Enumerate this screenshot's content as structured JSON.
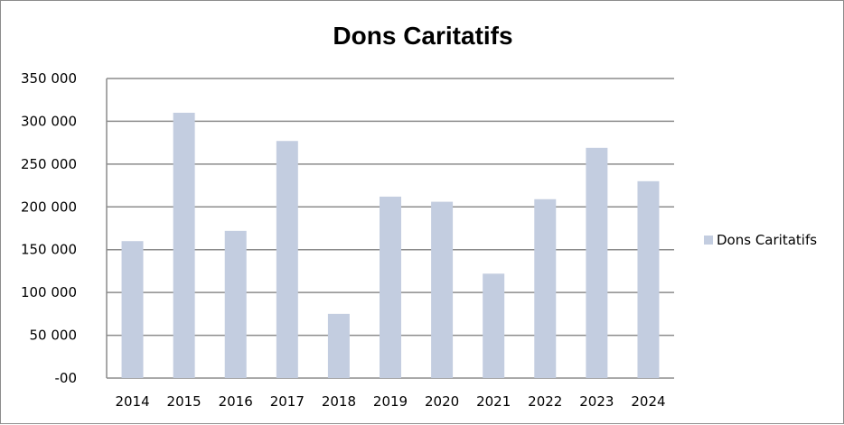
{
  "chart_data": {
    "type": "bar",
    "title": "Dons Caritatifs",
    "categories": [
      "2014",
      "2015",
      "2016",
      "2017",
      "2018",
      "2019",
      "2020",
      "2021",
      "2022",
      "2023",
      "2024"
    ],
    "series": [
      {
        "name": "Dons Caritatifs",
        "color": "#c3cde0",
        "values": [
          160000,
          310000,
          172000,
          277000,
          75000,
          212000,
          206000,
          122000,
          209000,
          269000,
          230000
        ]
      }
    ],
    "y_ticks": [
      "-00",
      "50 000",
      "100 000",
      "150 000",
      "200 000",
      "250 000",
      "300 000",
      "350 000"
    ],
    "ylim": [
      0,
      350000
    ],
    "grid": true,
    "legend_position": "right",
    "gridline_color": "#8c8c8c",
    "xlabel": "",
    "ylabel": ""
  }
}
